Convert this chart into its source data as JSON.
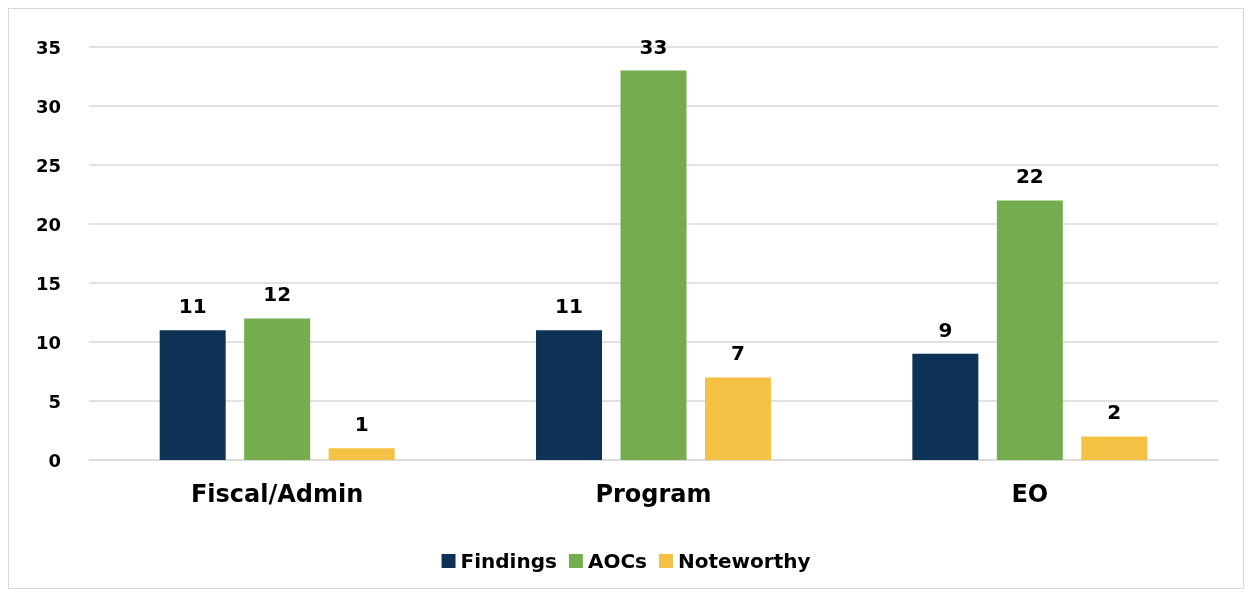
{
  "chart_data": {
    "type": "bar",
    "categories": [
      "Fiscal/Admin",
      "Program",
      "EO"
    ],
    "series": [
      {
        "name": "Findings",
        "color": "#0d3256",
        "values": [
          11,
          11,
          9
        ]
      },
      {
        "name": "AOCs",
        "color": "#75ad4e",
        "values": [
          12,
          33,
          22
        ]
      },
      {
        "name": "Noteworthy",
        "color": "#f5c145",
        "values": [
          1,
          7,
          2
        ]
      }
    ],
    "ylim": [
      0,
      35
    ],
    "yticks": [
      0,
      5,
      10,
      15,
      20,
      25,
      30,
      35
    ],
    "grid": "y",
    "legend": "bottom",
    "data_labels": true
  }
}
